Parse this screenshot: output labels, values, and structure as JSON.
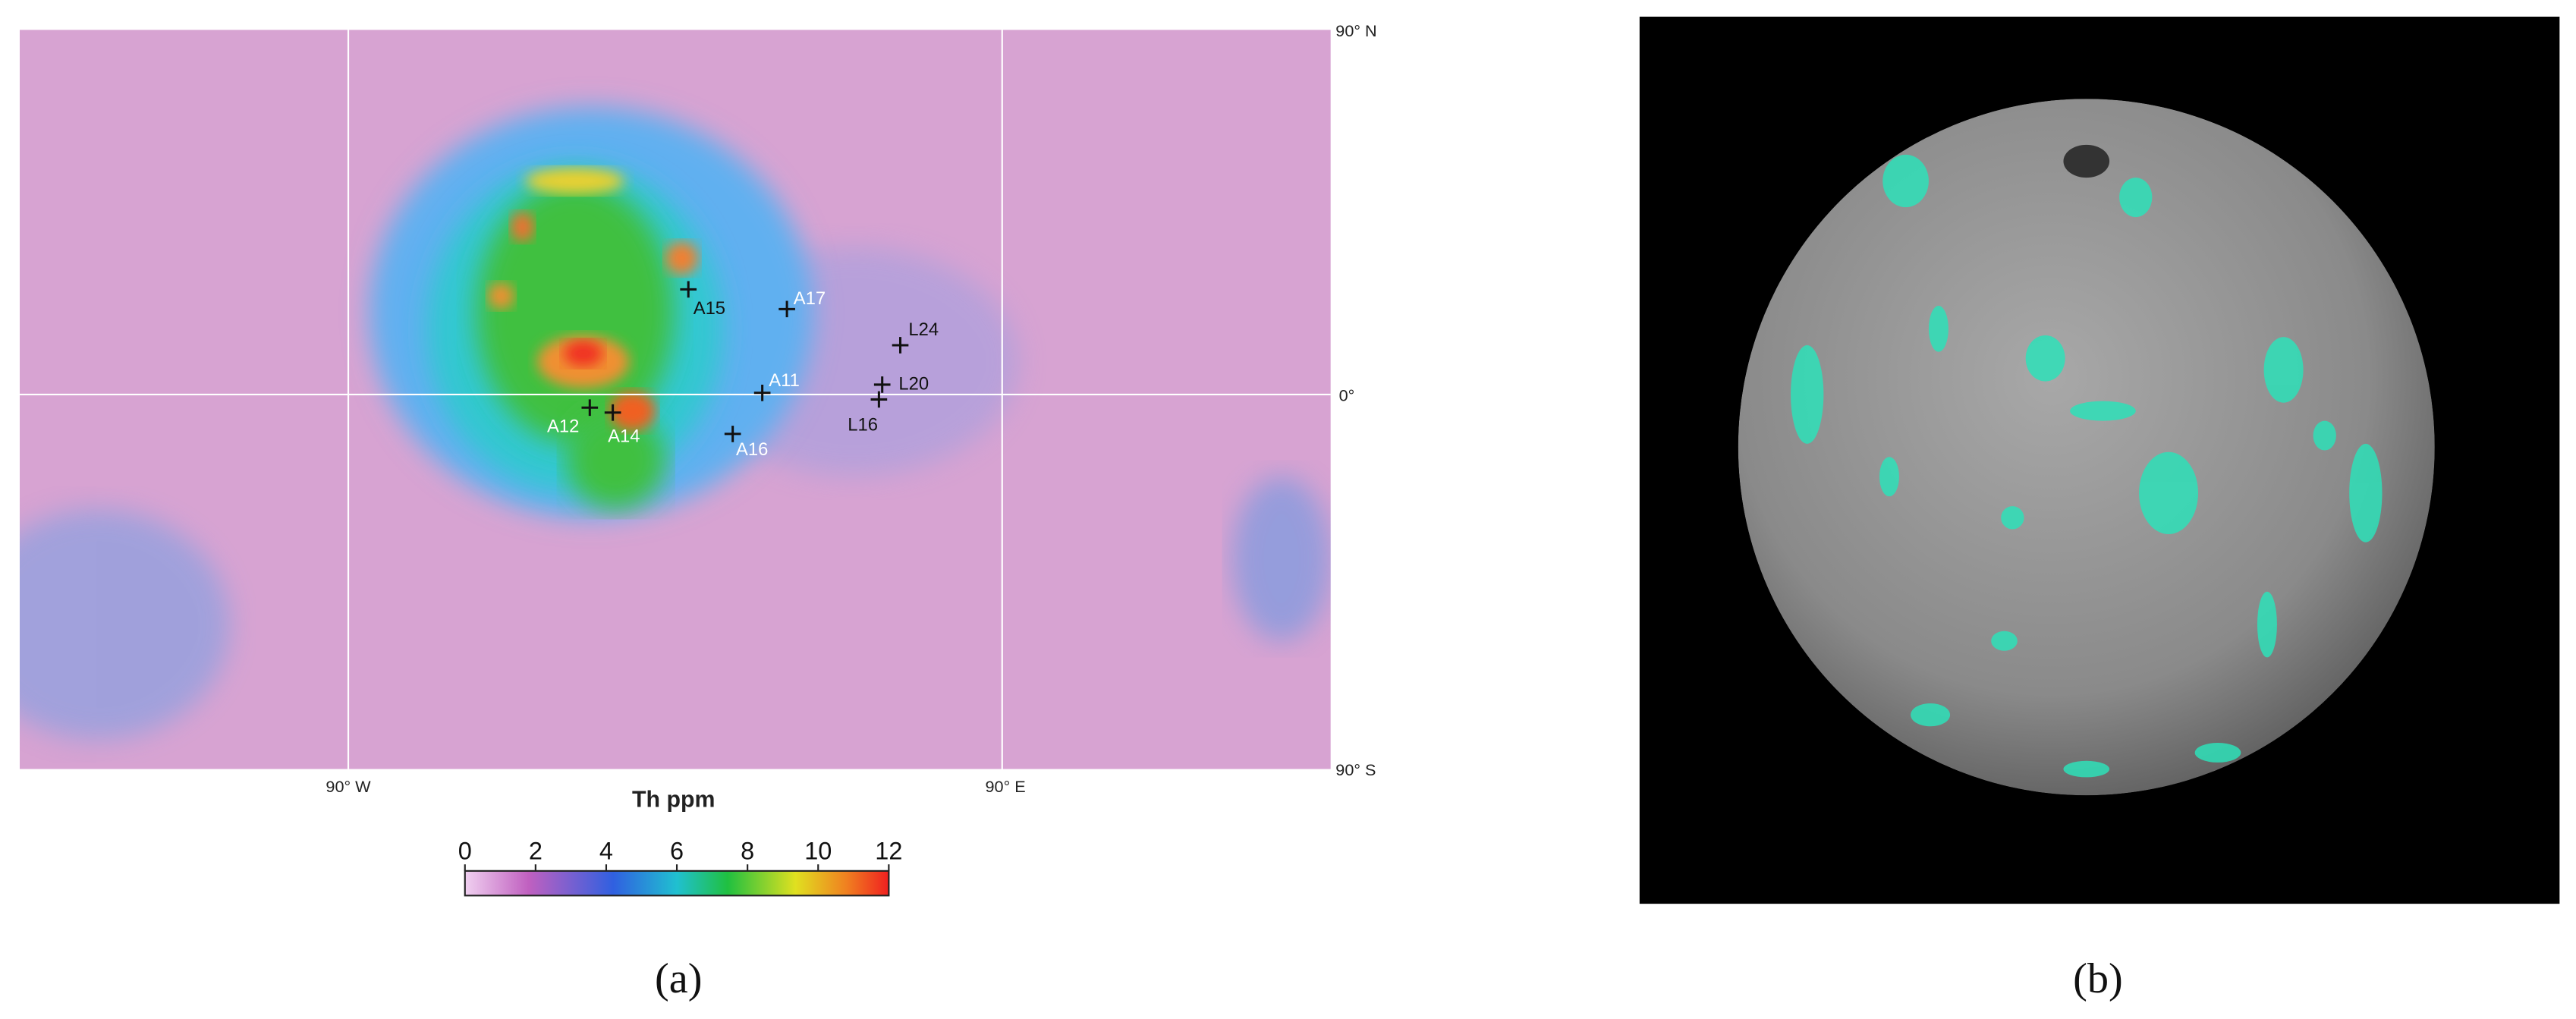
{
  "map": {
    "north_label": "90° N",
    "equator_label": "0°",
    "south_label": "90° S",
    "west_label": "90° W",
    "east_label": "90° E",
    "sites": [
      "A15",
      "A17",
      "L24",
      "A11",
      "L20",
      "L16",
      "A12",
      "A14",
      "A16"
    ],
    "colorbar": {
      "title": "Th ppm",
      "ticks": [
        0,
        2,
        4,
        6,
        8,
        10,
        12
      ]
    }
  },
  "captions": [
    "(a)",
    "(b)"
  ]
}
